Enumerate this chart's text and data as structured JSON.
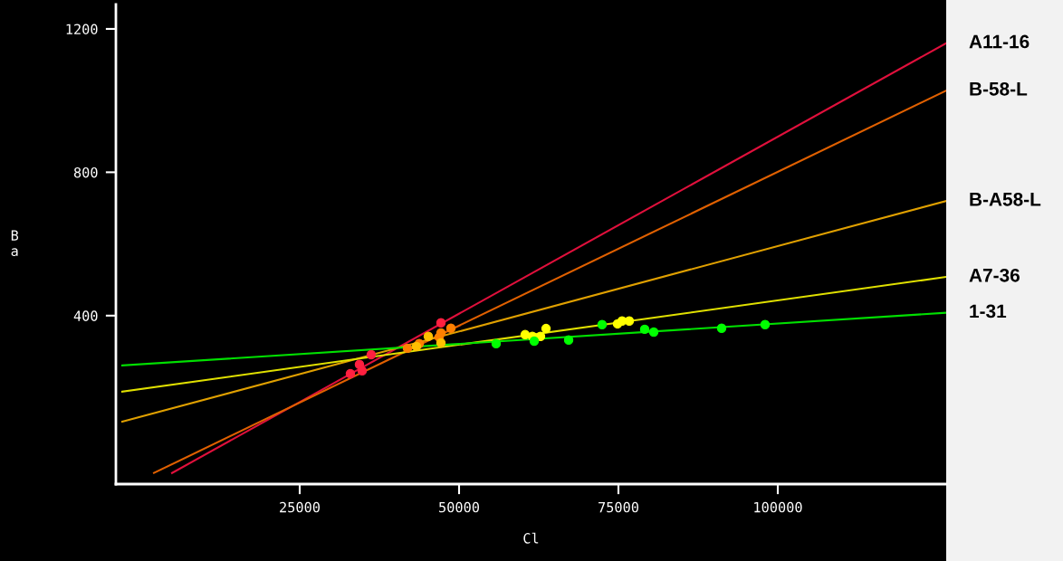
{
  "chart_data": {
    "type": "scatter",
    "xlabel": "Cl",
    "ylabel": "Ba",
    "xlim": [
      -3835,
      126420
    ],
    "ylim": [
      -70,
      1268
    ],
    "xticks": [
      25000,
      50000,
      75000,
      100000
    ],
    "yticks": [
      400,
      800,
      1200
    ],
    "grid": false,
    "legend": false,
    "line_style": "solid",
    "series": [
      {
        "marker": "circle",
        "color": "#ff2040",
        "x": [
          32950,
          34370,
          34800,
          36220,
          47160
        ],
        "values": [
          238,
          264,
          246,
          291,
          380
        ]
      },
      {
        "marker": "circle",
        "color": "#ff8000",
        "x": [
          47160,
          48720,
          46870,
          43750,
          41900
        ],
        "values": [
          352,
          365,
          340,
          322,
          309
        ]
      },
      {
        "marker": "circle",
        "color": "#ffc000",
        "x": [
          45170,
          47160,
          43320
        ],
        "values": [
          342,
          324,
          314
        ]
      },
      {
        "marker": "circle",
        "color": "#ffff00",
        "x": [
          60370,
          61500,
          63640,
          62780,
          75570,
          76700,
          74860
        ],
        "values": [
          347,
          342,
          364,
          342,
          385,
          385,
          377
        ]
      },
      {
        "marker": "circle",
        "color": "#00ff00",
        "x": [
          55820,
          61790,
          67190,
          72440,
          79120,
          80540,
          91190,
          98010
        ],
        "values": [
          322,
          329,
          332,
          375,
          362,
          354,
          365,
          375
        ]
      },
      {
        "type": "line",
        "name": "A11-16",
        "color": "#e0103c",
        "x": [
          4970,
          126420
        ],
        "values": [
          -39,
          1160
        ]
      },
      {
        "type": "line",
        "name": "B-58-L",
        "color": "#e06000",
        "x": [
          2130,
          126420
        ],
        "values": [
          -39,
          1028
        ]
      },
      {
        "type": "line",
        "name": "B-A58-L",
        "color": "#e0a000",
        "x": [
          -2840,
          126420
        ],
        "values": [
          104,
          720
        ]
      },
      {
        "type": "line",
        "name": "A7-36",
        "color": "#e0e000",
        "x": [
          -2840,
          126420
        ],
        "values": [
          188,
          508
        ]
      },
      {
        "type": "line",
        "name": "1-31",
        "color": "#00e000",
        "x": [
          -2840,
          126420
        ],
        "values": [
          261,
          408
        ]
      }
    ]
  }
}
